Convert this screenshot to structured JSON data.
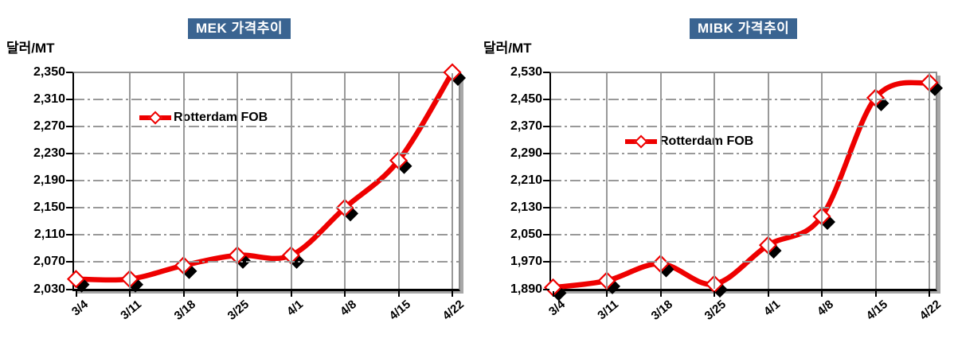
{
  "colors": {
    "line": "#EE0000",
    "marker_fill": "#FFFFFF",
    "marker_shadow": "#000000",
    "title_bg": "#3A6491",
    "title_text": "#FFFFFF",
    "grid": "#999999",
    "axis": "#000000",
    "text": "#000000"
  },
  "chart_data": [
    {
      "type": "line",
      "title": "MEK 가격추이",
      "ylabel": "달러/MT",
      "categories": [
        "3/4",
        "3/11",
        "3/18",
        "3/25",
        "4/1",
        "4/8",
        "4/15",
        "4/22"
      ],
      "series": [
        {
          "name": "Rotterdam FOB",
          "values": [
            2045,
            2045,
            2065,
            2080,
            2080,
            2150,
            2220,
            2350
          ]
        }
      ],
      "ylim": [
        2030,
        2350
      ],
      "ytick_step": 40,
      "ytick_labels": [
        "2,350",
        "2,310",
        "2,270",
        "2,230",
        "2,190",
        "2,150",
        "2,110",
        "2,070",
        "2,030"
      ],
      "grid": true,
      "smooth": true,
      "marker": "diamond",
      "legend_position": "inside-top-left"
    },
    {
      "type": "line",
      "title": "MIBK 가격추이",
      "ylabel": "달러/MT",
      "categories": [
        "3/4",
        "3/11",
        "3/18",
        "3/25",
        "4/1",
        "4/8",
        "4/15",
        "4/22"
      ],
      "series": [
        {
          "name": "Rotterdam FOB",
          "values": [
            1895,
            1915,
            1965,
            1905,
            2020,
            2105,
            2455,
            2500
          ]
        }
      ],
      "ylim": [
        1890,
        2530
      ],
      "ytick_step": 80,
      "ytick_labels": [
        "2,530",
        "2,450",
        "2,370",
        "2,290",
        "2,210",
        "2,130",
        "2,050",
        "1,970",
        "1,890"
      ],
      "grid": true,
      "smooth": true,
      "marker": "diamond",
      "legend_position": "inside-top-left"
    }
  ]
}
